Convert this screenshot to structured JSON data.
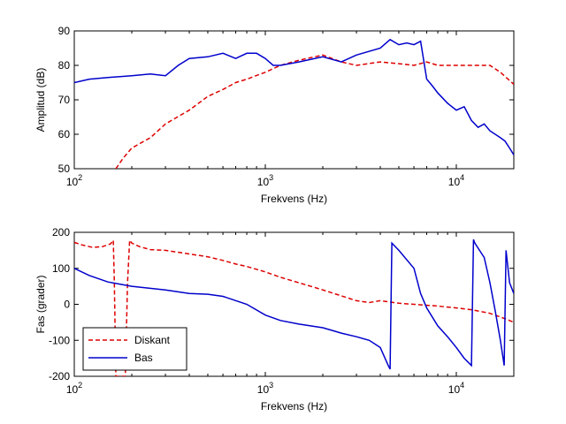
{
  "chart_data": [
    {
      "type": "line",
      "xscale": "log",
      "xlim": [
        100,
        20000
      ],
      "ylim": [
        50,
        90
      ],
      "xlabel": "Frekvens (Hz)",
      "ylabel": "Amplitud (dB)",
      "xticks": [
        100,
        1000,
        10000
      ],
      "xtick_labels": [
        {
          "base": "10",
          "exp": "2"
        },
        {
          "base": "10",
          "exp": "3"
        },
        {
          "base": "10",
          "exp": "4"
        }
      ],
      "yticks": [
        50,
        60,
        70,
        80,
        90
      ],
      "ytick_labels": [
        "50",
        "60",
        "70",
        "80",
        "90"
      ],
      "series": [
        {
          "name": "Diskant",
          "color": "#dd0000",
          "dash": "dashed",
          "x": [
            165,
            180,
            200,
            250,
            300,
            400,
            500,
            600,
            700,
            800,
            1000,
            1200,
            1500,
            2000,
            2500,
            3000,
            4000,
            5000,
            6000,
            7000,
            8000,
            10000,
            12000,
            15000,
            17000,
            20000
          ],
          "y": [
            50,
            53,
            56,
            59,
            63,
            67,
            71,
            73,
            75,
            76,
            78,
            80,
            81.5,
            83,
            81,
            80,
            81,
            80.5,
            80,
            81,
            80,
            80,
            80,
            80,
            78,
            74.5
          ]
        },
        {
          "name": "Bas",
          "color": "#0000cc",
          "dash": "solid",
          "x": [
            100,
            120,
            150,
            200,
            250,
            300,
            350,
            400,
            500,
            600,
            700,
            800,
            900,
            1000,
            1100,
            1200,
            1500,
            2000,
            2500,
            3000,
            4000,
            4500,
            5000,
            5500,
            6000,
            6500,
            7000,
            7500,
            8000,
            9000,
            10000,
            11000,
            12000,
            13000,
            14000,
            15000,
            17000,
            18000,
            19000,
            20000
          ],
          "y": [
            75,
            76,
            76.5,
            77,
            77.5,
            77,
            80,
            82,
            82.5,
            83.5,
            82,
            83.5,
            83.5,
            82,
            80,
            80,
            81,
            82.5,
            81,
            83,
            85,
            87.5,
            86,
            86.5,
            86,
            87,
            76,
            74,
            72,
            69,
            67,
            68,
            64,
            62,
            63,
            61,
            59,
            58,
            56,
            54
          ]
        }
      ]
    },
    {
      "type": "line",
      "xscale": "log",
      "xlim": [
        100,
        20000
      ],
      "ylim": [
        -200,
        200
      ],
      "xlabel": "Frekvens (Hz)",
      "ylabel": "Fas (grader)",
      "xticks": [
        100,
        1000,
        10000
      ],
      "xtick_labels": [
        {
          "base": "10",
          "exp": "2"
        },
        {
          "base": "10",
          "exp": "3"
        },
        {
          "base": "10",
          "exp": "4"
        }
      ],
      "yticks": [
        -200,
        -100,
        0,
        100,
        200
      ],
      "ytick_labels": [
        "-200",
        "-100",
        "0",
        "100",
        "200"
      ],
      "legend": {
        "position": "bottom-left",
        "entries": [
          "Diskant",
          "Bas"
        ]
      },
      "series": [
        {
          "name": "Diskant",
          "color": "#dd0000",
          "dash": "dashed",
          "x": [
            100,
            110,
            125,
            140,
            155,
            160,
            162,
            165,
            185,
            190,
            195,
            200,
            220,
            250,
            300,
            400,
            500,
            600,
            700,
            800,
            1000,
            1200,
            1500,
            2000,
            3000,
            3500,
            4000,
            5000,
            6000,
            8000,
            10000,
            12000,
            15000,
            18000,
            20000
          ],
          "y": [
            172,
            165,
            158,
            160,
            168,
            178,
            60,
            -200,
            -200,
            60,
            178,
            170,
            160,
            152,
            150,
            140,
            132,
            122,
            112,
            105,
            90,
            75,
            60,
            40,
            10,
            5,
            10,
            3,
            0,
            -5,
            -10,
            -15,
            -25,
            -40,
            -50
          ]
        },
        {
          "name": "Bas",
          "color": "#0000cc",
          "dash": "solid",
          "x": [
            100,
            120,
            150,
            200,
            300,
            400,
            500,
            600,
            800,
            1000,
            1200,
            1500,
            2000,
            2500,
            3000,
            3500,
            4000,
            4400,
            4500,
            4600,
            5000,
            6000,
            6500,
            7000,
            8000,
            9000,
            10000,
            11000,
            12000,
            12300,
            12500,
            14000,
            15000,
            16000,
            17000,
            17800,
            18200,
            19000,
            20000
          ],
          "y": [
            100,
            80,
            62,
            50,
            40,
            30,
            28,
            22,
            0,
            -30,
            -45,
            -55,
            -65,
            -80,
            -90,
            -100,
            -120,
            -170,
            -180,
            170,
            150,
            100,
            30,
            -10,
            -60,
            -90,
            -120,
            -150,
            -170,
            180,
            170,
            130,
            60,
            -20,
            -100,
            -170,
            150,
            60,
            30
          ]
        }
      ]
    }
  ]
}
